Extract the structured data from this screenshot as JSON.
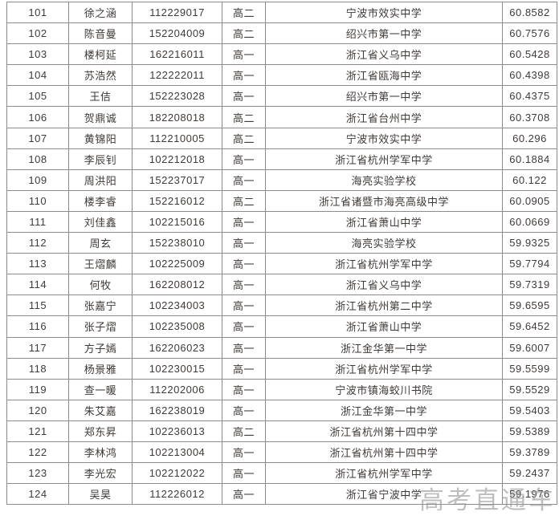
{
  "watermark": {
    "text": "高考直通车",
    "color": "#9a9a9a"
  },
  "table": {
    "border_color": "#8c8c8c",
    "text_color": "#3f3a37",
    "columns": [
      "rank",
      "name",
      "exam-id",
      "grade",
      "school",
      "score"
    ],
    "rows": [
      [
        "101",
        "徐之涵",
        "112229017",
        "高二",
        "宁波市效实中学",
        "60.8582"
      ],
      [
        "102",
        "陈音曼",
        "152204009",
        "高二",
        "绍兴市第一中学",
        "60.7576"
      ],
      [
        "103",
        "楼柯延",
        "162216011",
        "高一",
        "浙江省义乌中学",
        "60.5428"
      ],
      [
        "104",
        "苏浩然",
        "122222011",
        "高一",
        "浙江省瓯海中学",
        "60.4398"
      ],
      [
        "105",
        "王佶",
        "152223028",
        "高一",
        "绍兴市第一中学",
        "60.4375"
      ],
      [
        "106",
        "贺鼎诚",
        "182208018",
        "高二",
        "浙江省台州中学",
        "60.3708"
      ],
      [
        "107",
        "黄锦阳",
        "112210005",
        "高二",
        "宁波市效实中学",
        "60.296"
      ],
      [
        "108",
        "李辰钊",
        "102212018",
        "高一",
        "浙江省杭州学军中学",
        "60.1884"
      ],
      [
        "109",
        "周洪阳",
        "152237017",
        "高一",
        "海亮实验学校",
        "60.122"
      ],
      [
        "110",
        "楼李睿",
        "152216012",
        "高二",
        "浙江省诸暨市海亮高级中学",
        "60.0905"
      ],
      [
        "111",
        "刘佳鑫",
        "102215016",
        "高一",
        "浙江省萧山中学",
        "60.0669"
      ],
      [
        "112",
        "周玄",
        "152238010",
        "高一",
        "海亮实验学校",
        "59.9325"
      ],
      [
        "113",
        "王熠麟",
        "102225009",
        "高一",
        "浙江省杭州学军中学",
        "59.7794"
      ],
      [
        "114",
        "何牧",
        "162208012",
        "高一",
        "浙江省义乌中学",
        "59.7319"
      ],
      [
        "115",
        "张嘉宁",
        "102234003",
        "高一",
        "浙江省杭州第二中学",
        "59.6595"
      ],
      [
        "116",
        "张子熠",
        "102235008",
        "高一",
        "浙江省萧山中学",
        "59.6452"
      ],
      [
        "117",
        "方子嫣",
        "162206023",
        "高一",
        "浙江金华第一中学",
        "59.6007"
      ],
      [
        "118",
        "杨景雅",
        "102230015",
        "高一",
        "浙江省杭州学军中学",
        "59.5599"
      ],
      [
        "119",
        "查一暖",
        "112202006",
        "高一",
        "宁波市镇海蛟川书院",
        "59.5529"
      ],
      [
        "120",
        "朱艾嘉",
        "162238019",
        "高一",
        "浙江金华第一中学",
        "59.5403"
      ],
      [
        "121",
        "郑东昇",
        "102236013",
        "高二",
        "浙江省杭州第十四中学",
        "59.5389"
      ],
      [
        "122",
        "李林鸿",
        "102213004",
        "高一",
        "浙江省杭州第十四中学",
        "59.3789"
      ],
      [
        "123",
        "李光宏",
        "102212022",
        "高一",
        "浙江省杭州学军中学",
        "59.2437"
      ],
      [
        "124",
        "吴昊",
        "112226012",
        "高一",
        "浙江省宁波中学",
        "59.1976"
      ]
    ]
  }
}
